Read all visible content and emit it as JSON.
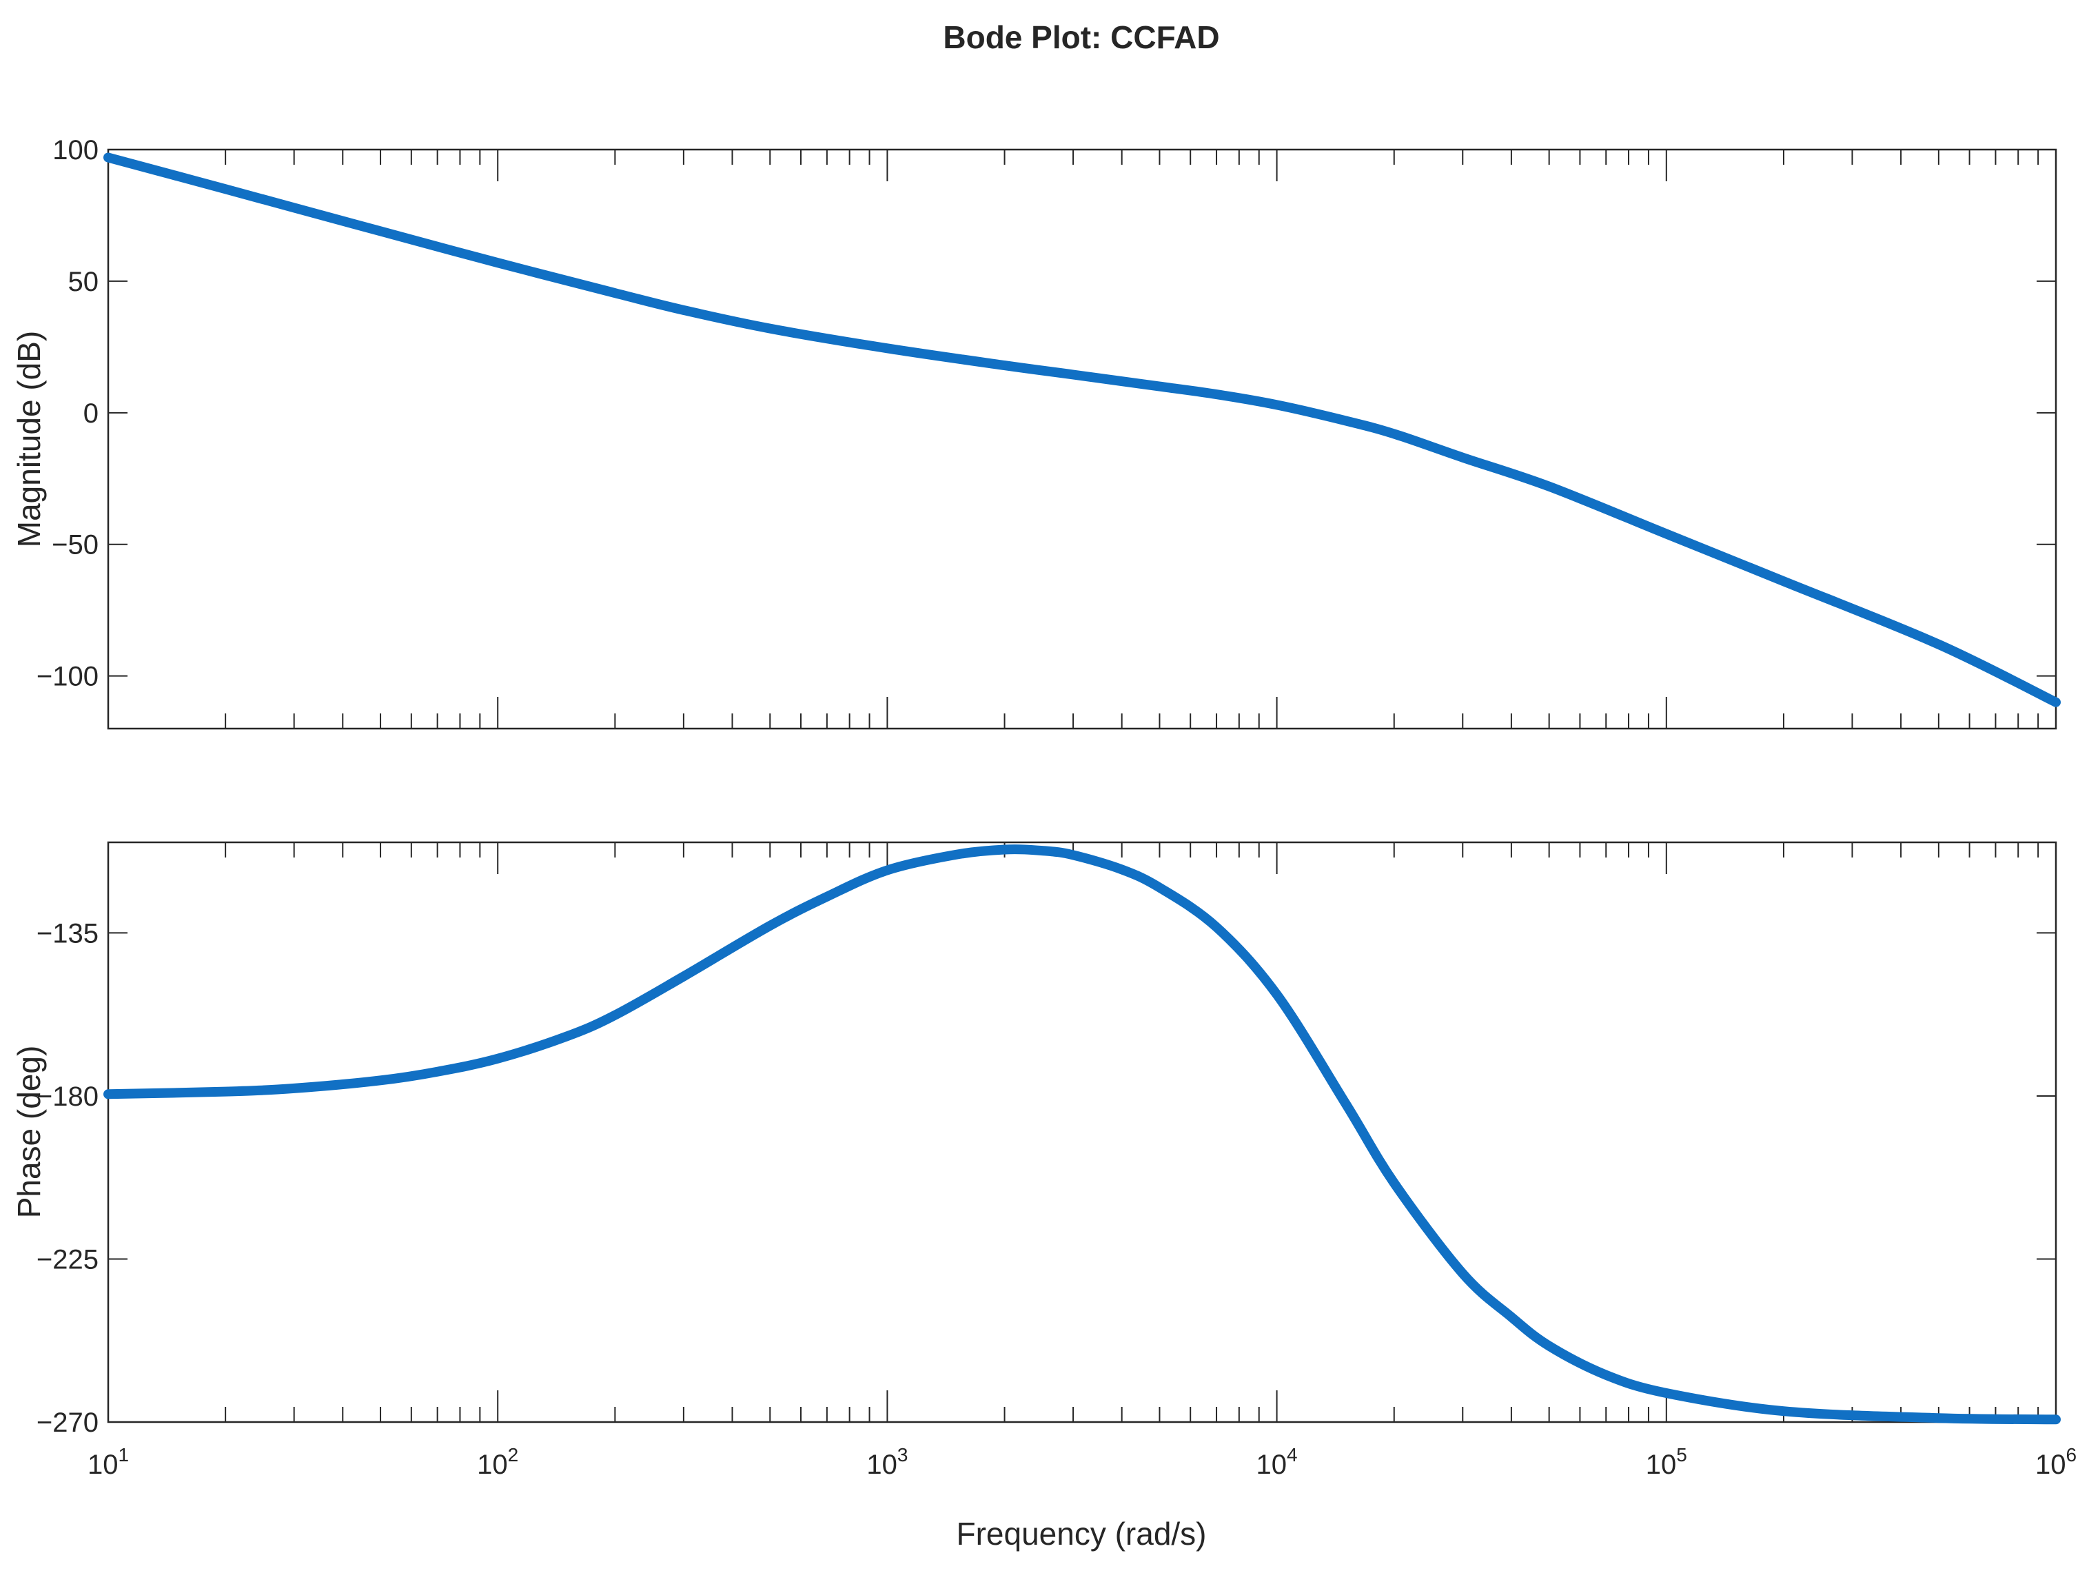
{
  "chart_data": {
    "type": "line",
    "title": "Bode Plot: CCFAD",
    "xlabel": "Frequency (rad/s)",
    "xscale": "log",
    "xlim": [
      10,
      1000000
    ],
    "x_ticks": [
      {
        "base": "10",
        "exp": "1"
      },
      {
        "base": "10",
        "exp": "2"
      },
      {
        "base": "10",
        "exp": "3"
      },
      {
        "base": "10",
        "exp": "4"
      },
      {
        "base": "10",
        "exp": "5"
      },
      {
        "base": "10",
        "exp": "6"
      }
    ],
    "line_color": "#1170c4",
    "grid": false,
    "legend": "none",
    "subplots": [
      {
        "name": "magnitude",
        "ylabel": "Magnitude (dB)",
        "ylim": [
          -120,
          100
        ],
        "yticks": [
          "100",
          "50",
          "0",
          "−50",
          "−100"
        ],
        "ytick_values": [
          100,
          50,
          0,
          -50,
          -100
        ],
        "x": [
          10,
          20,
          30,
          50,
          100,
          200,
          300,
          500,
          1000,
          2000,
          3000,
          5000,
          7000,
          10000,
          15000,
          20000,
          30000,
          50000,
          100000,
          200000,
          500000,
          1000000
        ],
        "y": [
          97,
          85,
          77.9,
          69,
          57,
          45.5,
          39,
          32,
          24.5,
          18,
          14.5,
          10,
          7,
          3,
          -3,
          -8,
          -17,
          -28,
          -46,
          -64,
          -88,
          -110
        ]
      },
      {
        "name": "phase",
        "ylabel": "Phase (deg)",
        "ylim": [
          -270,
          -110
        ],
        "yticks": [
          "−135",
          "−180",
          "−225",
          "−270"
        ],
        "ytick_values": [
          -135,
          -180,
          -225,
          -270
        ],
        "x": [
          10,
          20,
          30,
          50,
          70,
          100,
          150,
          200,
          300,
          500,
          700,
          1000,
          1500,
          2000,
          2500,
          3000,
          4000,
          5000,
          7000,
          10000,
          15000,
          20000,
          30000,
          40000,
          50000,
          70000,
          100000,
          200000,
          500000,
          1000000
        ],
        "y": [
          -179.5,
          -178.8,
          -177.9,
          -175.7,
          -173.3,
          -169.7,
          -163.6,
          -157.7,
          -147,
          -133,
          -125,
          -117.7,
          -113.4,
          -112,
          -112.3,
          -113.5,
          -117.5,
          -122.5,
          -133.4,
          -152,
          -182,
          -204,
          -229,
          -241,
          -249,
          -257,
          -262,
          -267,
          -268.9,
          -269.3
        ]
      }
    ]
  }
}
